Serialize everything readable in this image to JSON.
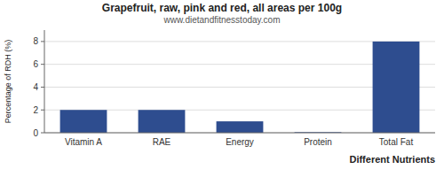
{
  "chart_data": {
    "type": "bar",
    "title": "Grapefruit, raw, pink and red, all areas per 100g",
    "subtitle": "www.dietandfitnesstoday.com",
    "xlabel": "Different Nutrients",
    "ylabel": "Percentage of RDH (%)",
    "categories": [
      "Vitamin A",
      "RAE",
      "Energy",
      "Protein",
      "Total Fat"
    ],
    "values": [
      2.0,
      2.0,
      1.0,
      0.05,
      8.0
    ],
    "color": "#2e4d8f",
    "ylim": [
      0,
      9
    ],
    "yticks": [
      0,
      2,
      4,
      6,
      8
    ],
    "grid": true
  }
}
